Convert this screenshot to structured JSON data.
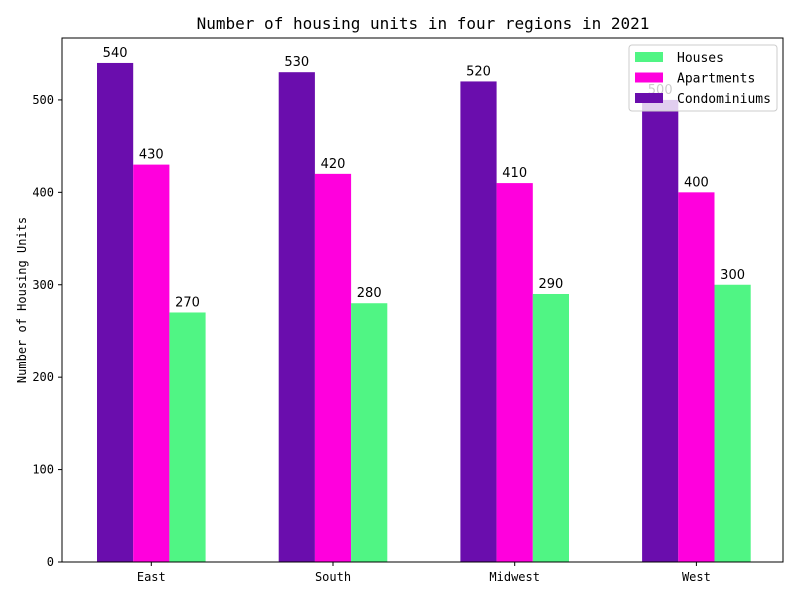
{
  "chart_data": {
    "type": "bar",
    "title": "Number of housing units in four regions in 2021",
    "xlabel": "",
    "ylabel": "Number of Housing Units",
    "categories": [
      "East",
      "South",
      "Midwest",
      "West"
    ],
    "series": [
      {
        "name": "Condominiums",
        "color": "#6a0dad",
        "values": [
          540,
          530,
          520,
          500
        ]
      },
      {
        "name": "Apartments",
        "color": "#ff00dd",
        "values": [
          430,
          420,
          410,
          400
        ]
      },
      {
        "name": "Houses",
        "color": "#50f584",
        "values": [
          270,
          280,
          290,
          300
        ]
      }
    ],
    "legend_order": [
      "Houses",
      "Apartments",
      "Condominiums"
    ],
    "yticks": [
      0,
      100,
      200,
      300,
      400,
      500
    ],
    "ylim": [
      0,
      567
    ],
    "grid": false,
    "legend_position": "top-right"
  }
}
